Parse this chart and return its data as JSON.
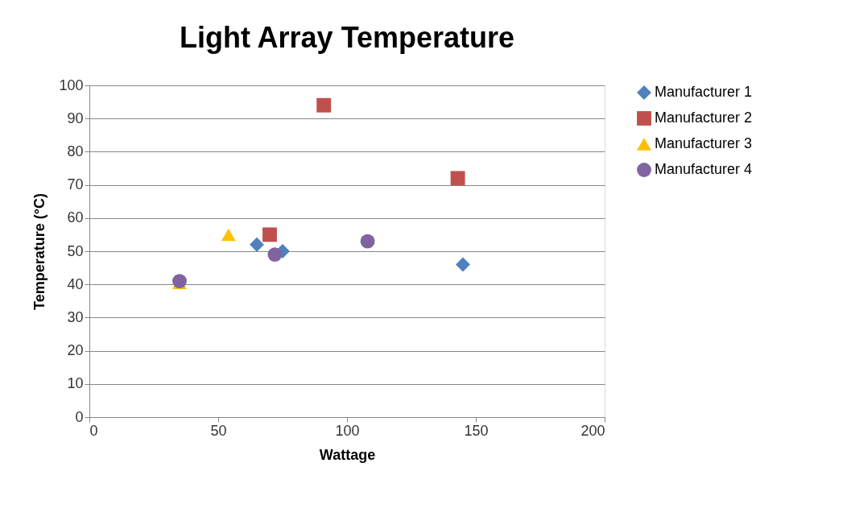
{
  "chart_data": {
    "type": "scatter",
    "title": "Light Array Temperature",
    "xlabel": "Wattage",
    "ylabel": "Temperature (°C)",
    "xlim": [
      0,
      200
    ],
    "xticks": [
      0,
      50,
      100,
      150,
      200
    ],
    "ylim": [
      0,
      100
    ],
    "yticks": [
      0,
      10,
      20,
      30,
      40,
      50,
      60,
      70,
      80,
      90,
      100
    ],
    "grid": "y",
    "legend": "right",
    "series": [
      {
        "name": "Manufacturer 1",
        "color": "#4f81bd",
        "marker": "diamond",
        "x": [
          65,
          75,
          145
        ],
        "values": [
          52,
          50,
          46
        ]
      },
      {
        "name": "Manufacturer 2",
        "color": "#c0504d",
        "marker": "square",
        "x": [
          91,
          143,
          70
        ],
        "values": [
          94,
          72,
          55
        ]
      },
      {
        "name": "Manufacturer 3",
        "color": "#ffc000",
        "marker": "triangle",
        "x": [
          35,
          54
        ],
        "values": [
          40.5,
          55
        ]
      },
      {
        "name": "Manufacturer 4",
        "color": "#8064a2",
        "marker": "circle",
        "x": [
          35,
          72,
          108
        ],
        "values": [
          41,
          49,
          53
        ]
      }
    ]
  }
}
